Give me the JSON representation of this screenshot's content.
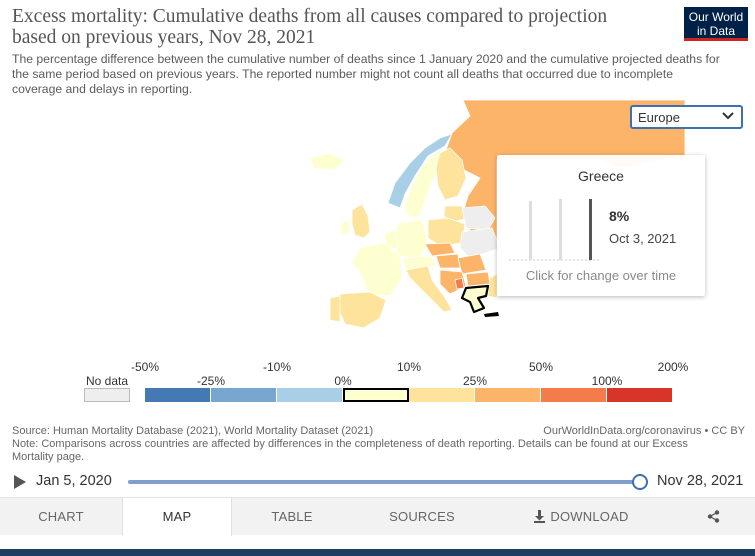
{
  "header": {
    "title": "Excess mortality: Cumulative deaths from all causes compared to projection based on previous years, Nov 28, 2021",
    "subtitle": "The percentage difference between the cumulative number of deaths since 1 January 2020 and the cumulative projected deaths for the same period based on previous years. The reported number might not count all deaths that occurred due to incomplete coverage and delays in reporting.",
    "logo_line1": "Our World",
    "logo_line2": "in Data"
  },
  "region_select": {
    "value": "Europe"
  },
  "tooltip": {
    "country": "Greece",
    "value": "8%",
    "date": "Oct 3, 2021",
    "hint": "Click for change over time"
  },
  "legend": {
    "no_data_label": "No data",
    "top_labels": [
      "-50%",
      "-10%",
      "10%",
      "50%",
      "200%"
    ],
    "bottom_labels": [
      "-25%",
      "0%",
      "25%",
      "100%"
    ],
    "bins": [
      {
        "color": "#4479b4"
      },
      {
        "color": "#77a7cf"
      },
      {
        "color": "#a9cfe6"
      },
      {
        "color": "#feffd0"
      },
      {
        "color": "#fde39b"
      },
      {
        "color": "#fcb469"
      },
      {
        "color": "#f47c4a"
      },
      {
        "color": "#d8352a"
      }
    ],
    "highlighted_bin": 3,
    "no_data_color": "#eeeeee"
  },
  "footer": {
    "source": "Source: Human Mortality Database (2021), World Mortality Dataset (2021)",
    "license": "OurWorldInData.org/coronavirus • CC BY",
    "note": "Note: Comparisons across countries are affected by differences in the completeness of death reporting. Details can be found at our Excess Mortality page."
  },
  "timeline": {
    "start_label": "Jan 5, 2020",
    "end_label": "Nov 28, 2021",
    "position_fraction": 1.0
  },
  "tabs": [
    {
      "label": "CHART",
      "active": false
    },
    {
      "label": "MAP",
      "active": true
    },
    {
      "label": "TABLE",
      "active": false
    },
    {
      "label": "SOURCES",
      "active": false
    },
    {
      "label": "DOWNLOAD",
      "active": false
    }
  ],
  "icons": {
    "select": "chevron-down-icon",
    "play": "play-icon",
    "download": "download-icon",
    "share": "share-icon"
  },
  "colors": {
    "accent": "#3b6fb6",
    "brand": "#002147",
    "brand_red": "#ce261e"
  }
}
